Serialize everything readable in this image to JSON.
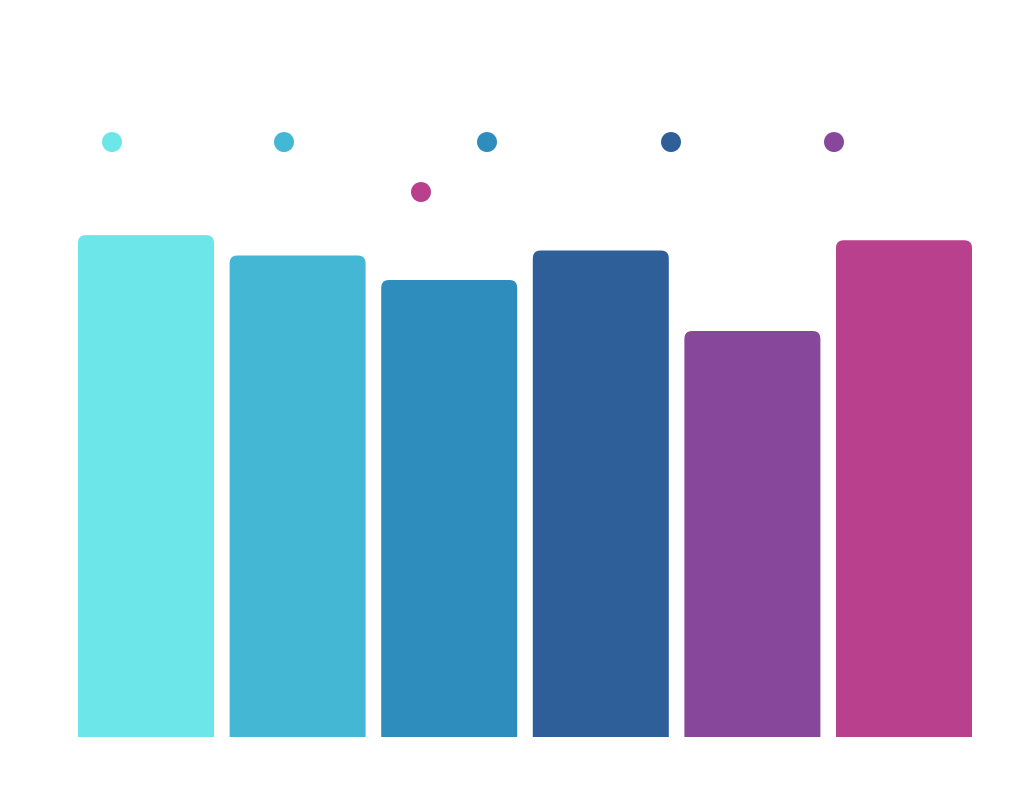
{
  "chart_data": {
    "type": "bar",
    "categories": [
      null,
      null,
      null,
      null,
      null,
      null
    ],
    "values": [
      4.92,
      4.72,
      4.48,
      4.77,
      3.98,
      4.87
    ],
    "colors": [
      "#6ce6e8",
      "#43b7d4",
      "#2e8dbc",
      "#2e5f98",
      "#87479a",
      "#b8408c"
    ],
    "ylim": [
      0,
      5
    ]
  }
}
